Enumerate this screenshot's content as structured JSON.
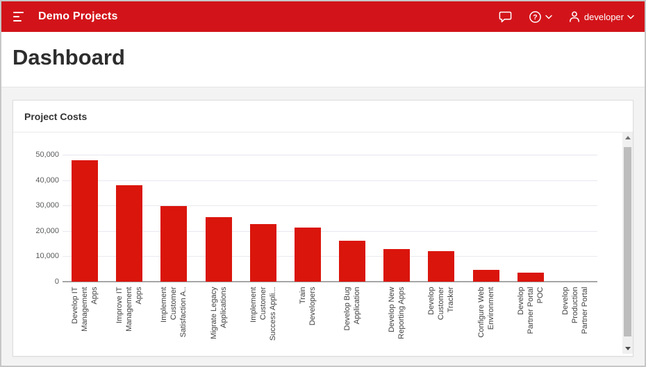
{
  "colors": {
    "header_bg": "#d2141a",
    "bar": "#da150c",
    "page_bg": "#f3f3f3",
    "grid": "#e8e8f0",
    "axis": "#a6a6a6"
  },
  "header": {
    "title": "Demo Projects",
    "user_label": "developer",
    "icons": [
      "menu-icon",
      "chat-bubble-icon",
      "help-circle-icon",
      "chevron-down-icon",
      "person-icon",
      "chevron-down-icon"
    ]
  },
  "page": {
    "title": "Dashboard"
  },
  "card": {
    "title": "Project Costs"
  },
  "chart_data": {
    "type": "bar",
    "title": "Project Costs",
    "categories": [
      "Develop IT Management Apps",
      "Improve IT Management Apps",
      "Implement Customer Satisfaction A..",
      "Migrate Legacy Applications",
      "Implement Customer Success Appli...",
      "Train Developers",
      "Develop Bug Application",
      "Develop New Reporting Apps",
      "Develop Customer Tracker",
      "Configure Web Environment",
      "Develop Partner Portal POC",
      "Develop Production Partner Portal"
    ],
    "tick_labels": [
      "Develop IT\nManagement\nApps",
      "Improve IT\nManagement\nApps",
      "Implement\nCustomer\nSatisfaction A..",
      "Migrate Legacy\nApplications",
      "Implement\nCustomer\nSuccess Appli...",
      "Train\nDevelopers",
      "Develop Bug\nApplication",
      "Develop New\nReporting Apps",
      "Develop\nCustomer\nTracker",
      "Configure Web\nEnvironment",
      "Develop\nPartner Portal\nPOC",
      "Develop\nProduction\nPartner Portal"
    ],
    "values": [
      47800,
      38000,
      29700,
      25300,
      22800,
      21400,
      16200,
      12900,
      11900,
      4700,
      3600,
      0
    ],
    "xlabel": "",
    "ylabel": "",
    "ylim": [
      0,
      50000
    ],
    "yticks": [
      0,
      10000,
      20000,
      30000,
      40000,
      50000
    ],
    "ytick_labels": [
      "0",
      "10,000",
      "20,000",
      "30,000",
      "40,000",
      "50,000"
    ],
    "grid": true,
    "legend": false,
    "bar_color": "#da150c"
  }
}
